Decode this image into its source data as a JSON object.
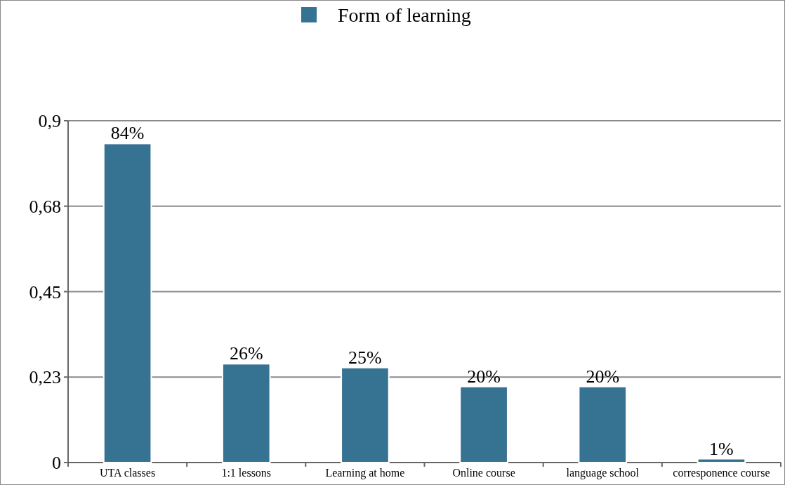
{
  "chart_data": {
    "type": "bar",
    "categories": [
      "UTA classes",
      "1:1 lessons",
      "Learning at home",
      "Online course",
      "language school",
      "corresponence course"
    ],
    "series": [
      {
        "name": "Form of learning",
        "color": "#367292",
        "values": [
          0.84,
          0.26,
          0.25,
          0.2,
          0.2,
          0.01
        ],
        "value_labels": [
          "84%",
          "26%",
          "25%",
          "20%",
          "20%",
          "1%"
        ]
      }
    ],
    "ylim": [
      0,
      0.9
    ],
    "yticks": [
      0,
      {
        "value": 0.225,
        "label": "0,23"
      },
      {
        "value": 0.45,
        "label": "0,45"
      },
      {
        "value": 0.675,
        "label": "0,68"
      },
      {
        "value": 0.9,
        "label": "0,9"
      }
    ],
    "grid": "y",
    "legend": "top"
  }
}
